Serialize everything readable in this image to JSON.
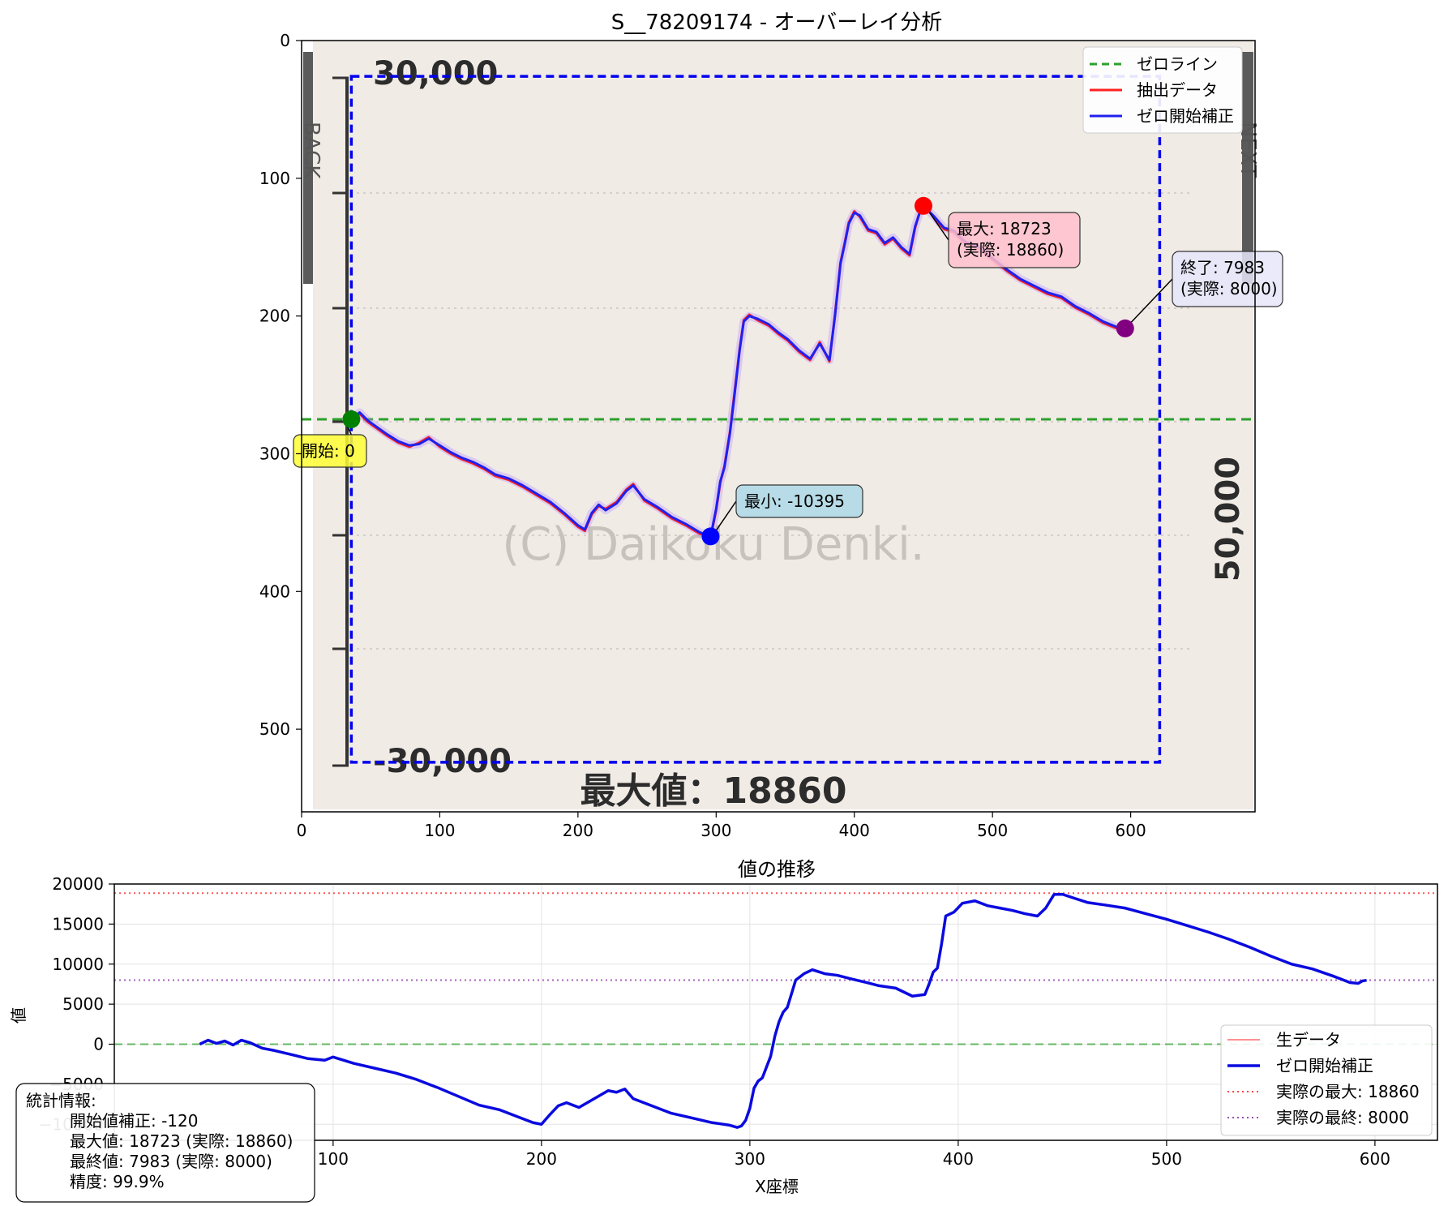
{
  "chart_data": [
    {
      "type": "line",
      "title": "S__78209174 - オーバーレイ分析",
      "xlim": [
        0,
        690
      ],
      "ylim": [
        560,
        0
      ],
      "x_ticks": [
        0,
        100,
        200,
        300,
        400,
        500,
        600
      ],
      "y_ticks": [
        0,
        100,
        200,
        300,
        400,
        500
      ],
      "grid": false,
      "legend_position": "top-right",
      "legend": [
        "ゼロライン",
        "抽出データ",
        "ゼロ開始補正"
      ],
      "background_image_text": {
        "top_label": "30,000",
        "bottom_label": "-30,000",
        "right_label": "50,000",
        "bottom_caption": "最大値：18860",
        "watermark": "(C) Daikoku Denki.",
        "left_tab": "BACK",
        "right_tab": "NEXT"
      },
      "zero_line_y": 275,
      "bbox_data": {
        "x": [
          36,
          621
        ],
        "y": [
          26,
          524
        ]
      },
      "series": [
        {
          "name": "ゼロ開始補正",
          "x": [
            36,
            42,
            48,
            55,
            62,
            70,
            78,
            85,
            92,
            100,
            108,
            116,
            124,
            132,
            140,
            150,
            160,
            170,
            180,
            190,
            200,
            205,
            210,
            215,
            220,
            228,
            235,
            240,
            248,
            258,
            268,
            278,
            288,
            296,
            300,
            303,
            306,
            310,
            313,
            317,
            320,
            324,
            330,
            338,
            345,
            352,
            360,
            368,
            375,
            382,
            386,
            390,
            393,
            396,
            400,
            404,
            410,
            416,
            422,
            428,
            434,
            440,
            444,
            448,
            452,
            458,
            465,
            472,
            480,
            490,
            500,
            510,
            520,
            530,
            540,
            550,
            560,
            570,
            580,
            590,
            596
          ],
          "y": [
            275,
            270,
            276,
            281,
            286,
            291,
            294,
            293,
            289,
            294,
            299,
            303,
            306,
            310,
            315,
            318,
            323,
            329,
            335,
            343,
            352,
            355,
            343,
            337,
            341,
            336,
            327,
            323,
            333,
            339,
            346,
            351,
            357,
            360,
            340,
            320,
            310,
            285,
            260,
            225,
            204,
            200,
            202,
            206,
            212,
            217,
            225,
            231,
            220,
            232,
            200,
            162,
            148,
            133,
            125,
            127,
            137,
            139,
            147,
            143,
            150,
            155,
            135,
            123,
            122,
            128,
            136,
            138,
            146,
            150,
            158,
            166,
            173,
            178,
            183,
            186,
            193,
            198,
            204,
            208,
            209
          ]
        },
        {
          "name": "抽出データ",
          "x": [
            36,
            42,
            48,
            55,
            62,
            70,
            78,
            85,
            92,
            100,
            108,
            116,
            124,
            132,
            140,
            150,
            160,
            170,
            180,
            190,
            200,
            205,
            210,
            215,
            220,
            228,
            235,
            240,
            248,
            258,
            268,
            278,
            288,
            296,
            300,
            303,
            306,
            310,
            313,
            317,
            320,
            324,
            330,
            338,
            345,
            352,
            360,
            368,
            375,
            382,
            386,
            390,
            393,
            396,
            400,
            404,
            410,
            416,
            422,
            428,
            434,
            440,
            444,
            448,
            452,
            458,
            465,
            472,
            480,
            490,
            500,
            510,
            520,
            530,
            540,
            550,
            560,
            570,
            580,
            590,
            596
          ],
          "y": [
            276,
            271,
            277,
            282,
            287,
            292,
            295,
            292,
            288,
            295,
            300,
            304,
            307,
            311,
            316,
            319,
            324,
            330,
            336,
            344,
            353,
            356,
            344,
            338,
            340,
            335,
            326,
            322,
            334,
            340,
            347,
            352,
            358,
            361,
            341,
            321,
            309,
            284,
            258,
            224,
            203,
            199,
            203,
            207,
            213,
            218,
            226,
            232,
            219,
            233,
            199,
            161,
            147,
            132,
            124,
            128,
            138,
            140,
            148,
            144,
            151,
            156,
            136,
            122,
            121,
            129,
            137,
            139,
            147,
            151,
            159,
            167,
            174,
            179,
            184,
            187,
            194,
            199,
            205,
            209,
            210
          ]
        }
      ],
      "annotations": [
        {
          "label": "開始: 0",
          "x": 36,
          "y": 275,
          "color": "#008000",
          "box_color": "#ffff33"
        },
        {
          "label": "最小: -10395",
          "x": 296,
          "y": 360,
          "color": "#0000ff",
          "box_color": "#add8e6"
        },
        {
          "label": "最大: 18723\n(実際: 18860)",
          "x": 450,
          "y": 120,
          "color": "#ff0000",
          "box_color": "#ffc0cb"
        },
        {
          "label": "終了: 7983\n(実際: 8000)",
          "x": 596,
          "y": 209,
          "color": "#800080",
          "box_color": "#e6e6fa"
        }
      ]
    },
    {
      "type": "line",
      "title": "値の推移",
      "xlabel": "X座標",
      "ylabel": "値",
      "xlim": [
        -5,
        630
      ],
      "ylim": [
        -12000,
        20000
      ],
      "x_ticks": [
        100,
        200,
        300,
        400,
        500,
        600
      ],
      "y_ticks": [
        -10000,
        -5000,
        0,
        5000,
        10000,
        15000,
        20000
      ],
      "grid": true,
      "legend_position": "lower-right",
      "legend": [
        "生データ",
        "ゼロ開始補正",
        "実際の最大: 18860",
        "実際の最終: 8000"
      ],
      "reference_lines": [
        {
          "name": "実際の最大: 18860",
          "y": 18860,
          "color": "#ff4444"
        },
        {
          "name": "実際の最終: 8000",
          "y": 8000,
          "color": "#9b4fb0"
        },
        {
          "name": "zero",
          "y": 0,
          "color": "#2ca02c"
        }
      ],
      "series": [
        {
          "name": "ゼロ開始補正",
          "x": [
            36,
            40,
            44,
            48,
            52,
            56,
            60,
            66,
            72,
            80,
            88,
            96,
            100,
            110,
            120,
            130,
            140,
            150,
            160,
            170,
            180,
            190,
            196,
            200,
            204,
            208,
            212,
            218,
            224,
            232,
            236,
            240,
            244,
            252,
            262,
            272,
            282,
            290,
            294,
            296,
            298,
            300,
            302,
            304,
            306,
            310,
            312,
            314,
            316,
            318,
            322,
            326,
            330,
            336,
            342,
            348,
            356,
            362,
            370,
            378,
            384,
            386,
            388,
            390,
            392,
            394,
            398,
            402,
            408,
            414,
            420,
            426,
            432,
            438,
            442,
            446,
            450,
            456,
            462,
            470,
            480,
            490,
            500,
            510,
            520,
            530,
            540,
            550,
            560,
            570,
            580,
            588,
            592,
            594,
            596
          ],
          "y": [
            0,
            500,
            100,
            400,
            -100,
            500,
            200,
            -500,
            -800,
            -1300,
            -1800,
            -2000,
            -1600,
            -2400,
            -3000,
            -3600,
            -4400,
            -5400,
            -6500,
            -7600,
            -8200,
            -9200,
            -9800,
            -10000,
            -8800,
            -7700,
            -7300,
            -7900,
            -7000,
            -5800,
            -6000,
            -5600,
            -6800,
            -7600,
            -8600,
            -9200,
            -9800,
            -10100,
            -10395,
            -10200,
            -9500,
            -8000,
            -5500,
            -4600,
            -4200,
            -1500,
            1000,
            2800,
            4000,
            4600,
            8000,
            8800,
            9300,
            8800,
            8600,
            8200,
            7700,
            7300,
            7000,
            6000,
            6200,
            7500,
            9000,
            9500,
            12500,
            16000,
            16500,
            17600,
            17900,
            17300,
            17000,
            16700,
            16300,
            16000,
            17000,
            18700,
            18723,
            18200,
            17700,
            17400,
            17000,
            16300,
            15600,
            14800,
            14000,
            13100,
            12100,
            11000,
            10000,
            9400,
            8500,
            7700,
            7600,
            7900,
            7983
          ]
        }
      ]
    }
  ],
  "stats_box": {
    "heading": "統計情報:",
    "lines": [
      "開始値補正: -120",
      "最大値: 18723 (実際: 18860)",
      "最終値: 7983 (実際: 8000)",
      "精度: 99.9%"
    ]
  }
}
